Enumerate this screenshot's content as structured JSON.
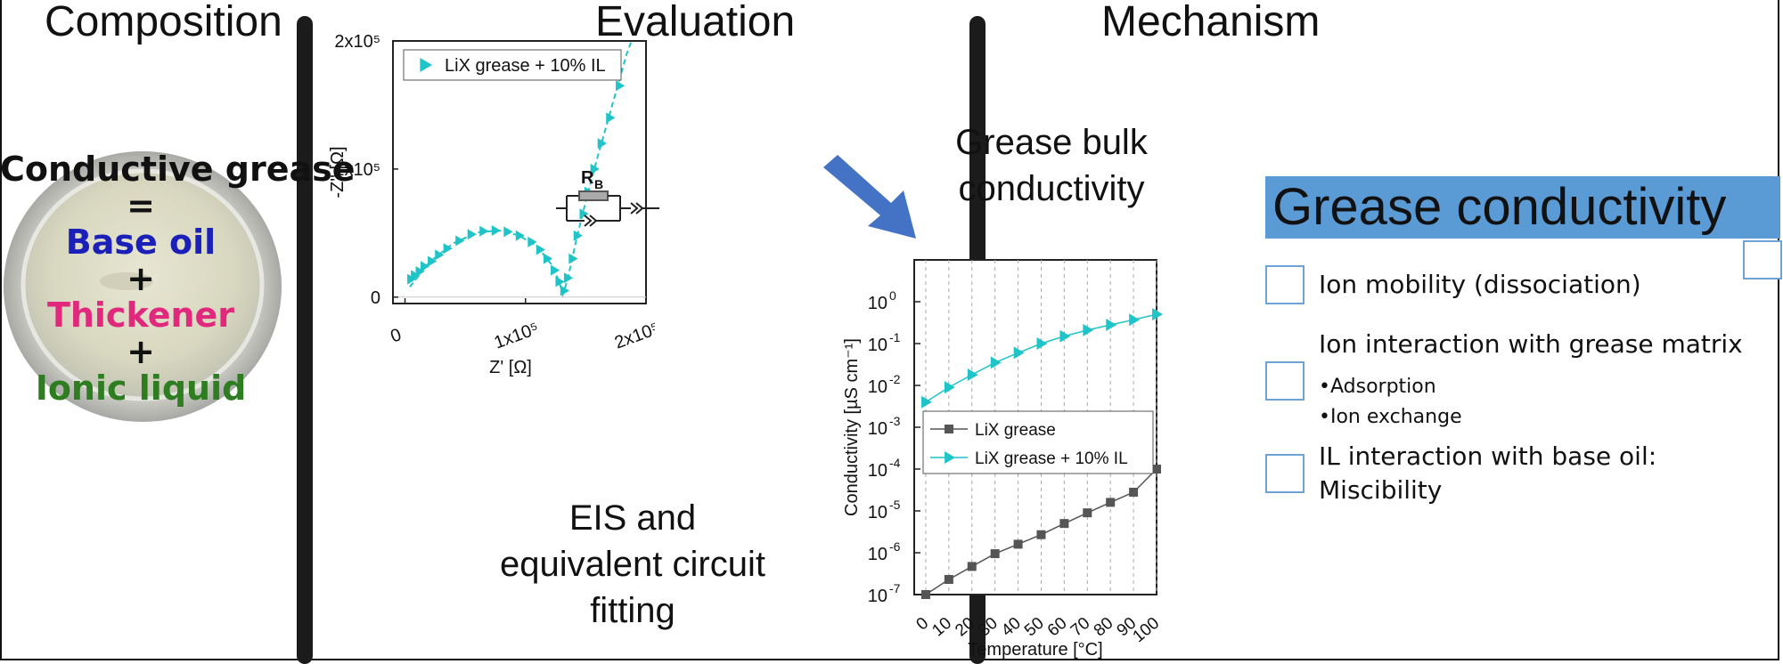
{
  "sections": {
    "composition": "Composition",
    "evaluation": "Evaluation",
    "mechanism": "Mechanism"
  },
  "composition": {
    "lines": [
      {
        "text": "Conductive grease",
        "color": "#111111"
      },
      {
        "text": "=",
        "color": "#111111"
      },
      {
        "text": "Base oil",
        "color": "#1b20b8"
      },
      {
        "text": "+",
        "color": "#111111"
      },
      {
        "text": "Thickener",
        "color": "#e0287d"
      },
      {
        "text": "+",
        "color": "#111111"
      },
      {
        "text": "Ionic liquid",
        "color": "#2e7d20"
      }
    ]
  },
  "evaluation": {
    "bulk_label_line1": "Grease bulk",
    "bulk_label_line2": "conductivity",
    "eis_line1": "EIS and",
    "eis_line2": "equivalent circuit",
    "eis_line3": "fitting",
    "circuit_label": "R",
    "circuit_subscript": "B",
    "arrow_color": "#4472c4"
  },
  "mechanism": {
    "header": "Grease conductivity",
    "header_bg": "#5b9bd5",
    "items": [
      {
        "text": "Ion mobility (dissociation)"
      },
      {
        "text": "Ion interaction with grease matrix"
      },
      {
        "bullet": "•Adsorption"
      },
      {
        "bullet": "•Ion exchange"
      },
      {
        "text": "IL interaction with base oil:"
      },
      {
        "text": "Miscibility"
      }
    ]
  },
  "chart_data": [
    {
      "type": "scatter",
      "title": "",
      "xlabel": "Z' [Ω]",
      "ylabel": "-Z'' [Ω]",
      "xlim": [
        -10000,
        200000
      ],
      "ylim": [
        -5000,
        200000
      ],
      "x_ticks": [
        {
          "value": 0,
          "label": "0"
        },
        {
          "value": 100000,
          "label": "1x10⁵"
        },
        {
          "value": 200000,
          "label": "2x10⁵"
        }
      ],
      "y_ticks": [
        {
          "value": 0,
          "label": "0"
        },
        {
          "value": 100000,
          "label": "1x10⁵"
        },
        {
          "value": 200000,
          "label": "2x10⁵"
        }
      ],
      "legend_position": "top-left",
      "series": [
        {
          "name": "LiX grease + 10% IL",
          "color": "#1fc4c8",
          "points": [
            [
              5000,
              14000
            ],
            [
              8000,
              17000
            ],
            [
              12000,
              20000
            ],
            [
              16000,
              24000
            ],
            [
              22000,
              28000
            ],
            [
              28000,
              33000
            ],
            [
              35000,
              38000
            ],
            [
              45000,
              44000
            ],
            [
              55000,
              49000
            ],
            [
              65000,
              51500
            ],
            [
              75000,
              52000
            ],
            [
              85000,
              51000
            ],
            [
              95000,
              48000
            ],
            [
              105000,
              43000
            ],
            [
              112000,
              37000
            ],
            [
              118000,
              30000
            ],
            [
              124000,
              21000
            ],
            [
              128000,
              12000
            ],
            [
              132000,
              5000
            ],
            [
              135000,
              15000
            ],
            [
              139000,
              30000
            ],
            [
              143000,
              48000
            ],
            [
              148000,
              65000
            ],
            [
              152000,
              82000
            ],
            [
              157000,
              100000
            ],
            [
              163000,
              120000
            ],
            [
              170000,
              140000
            ],
            [
              178000,
              165000
            ]
          ],
          "fit": [
            [
              4000,
              8000
            ],
            [
              20000,
              27000
            ],
            [
              40000,
              42000
            ],
            [
              60000,
              50500
            ],
            [
              78000,
              52000
            ],
            [
              95000,
              48000
            ],
            [
              110000,
              39000
            ],
            [
              122000,
              25000
            ],
            [
              128000,
              12000
            ],
            [
              131000,
              2000
            ],
            [
              135000,
              14000
            ],
            [
              142000,
              44000
            ],
            [
              150000,
              75000
            ],
            [
              160000,
              110000
            ],
            [
              172000,
              150000
            ],
            [
              184000,
              190000
            ],
            [
              188000,
              200000
            ]
          ]
        }
      ]
    },
    {
      "type": "line",
      "title": "",
      "xlabel": "Temperature [°C]",
      "ylabel": "Conductivity [µS cm⁻¹]",
      "scale_y": "log",
      "xlim": [
        -5,
        100
      ],
      "ylim": [
        1e-07,
        10
      ],
      "x_ticks": [
        0,
        10,
        20,
        30,
        40,
        50,
        60,
        70,
        80,
        90,
        100
      ],
      "y_ticks": [
        {
          "exp": -7,
          "label": "10",
          "sup": "-7"
        },
        {
          "exp": -6,
          "label": "10",
          "sup": "-6"
        },
        {
          "exp": -5,
          "label": "10",
          "sup": "-5"
        },
        {
          "exp": -4,
          "label": "10",
          "sup": "-4"
        },
        {
          "exp": -3,
          "label": "10",
          "sup": "-3"
        },
        {
          "exp": -2,
          "label": "10",
          "sup": "-2"
        },
        {
          "exp": -1,
          "label": "10",
          "sup": "-1"
        },
        {
          "exp": 0,
          "label": "10",
          "sup": "0"
        }
      ],
      "grid": "vertical",
      "legend_position": "center",
      "series": [
        {
          "name": "LiX grease",
          "color": "#555555",
          "marker": "square",
          "x": [
            0,
            10,
            20,
            30,
            40,
            50,
            60,
            70,
            80,
            90,
            100
          ],
          "y": [
            1e-07,
            2.3e-07,
            4.7e-07,
            9.5e-07,
            1.6e-06,
            2.7e-06,
            5e-06,
            9e-06,
            1.6e-05,
            2.8e-05,
            0.0001
          ]
        },
        {
          "name": "LiX grease + 10% IL",
          "color": "#1fc4c8",
          "marker": "triangle",
          "x": [
            0,
            10,
            20,
            30,
            40,
            50,
            60,
            70,
            80,
            90,
            100
          ],
          "y": [
            0.004,
            0.009,
            0.018,
            0.035,
            0.06,
            0.1,
            0.15,
            0.21,
            0.28,
            0.37,
            0.5
          ]
        }
      ]
    }
  ]
}
